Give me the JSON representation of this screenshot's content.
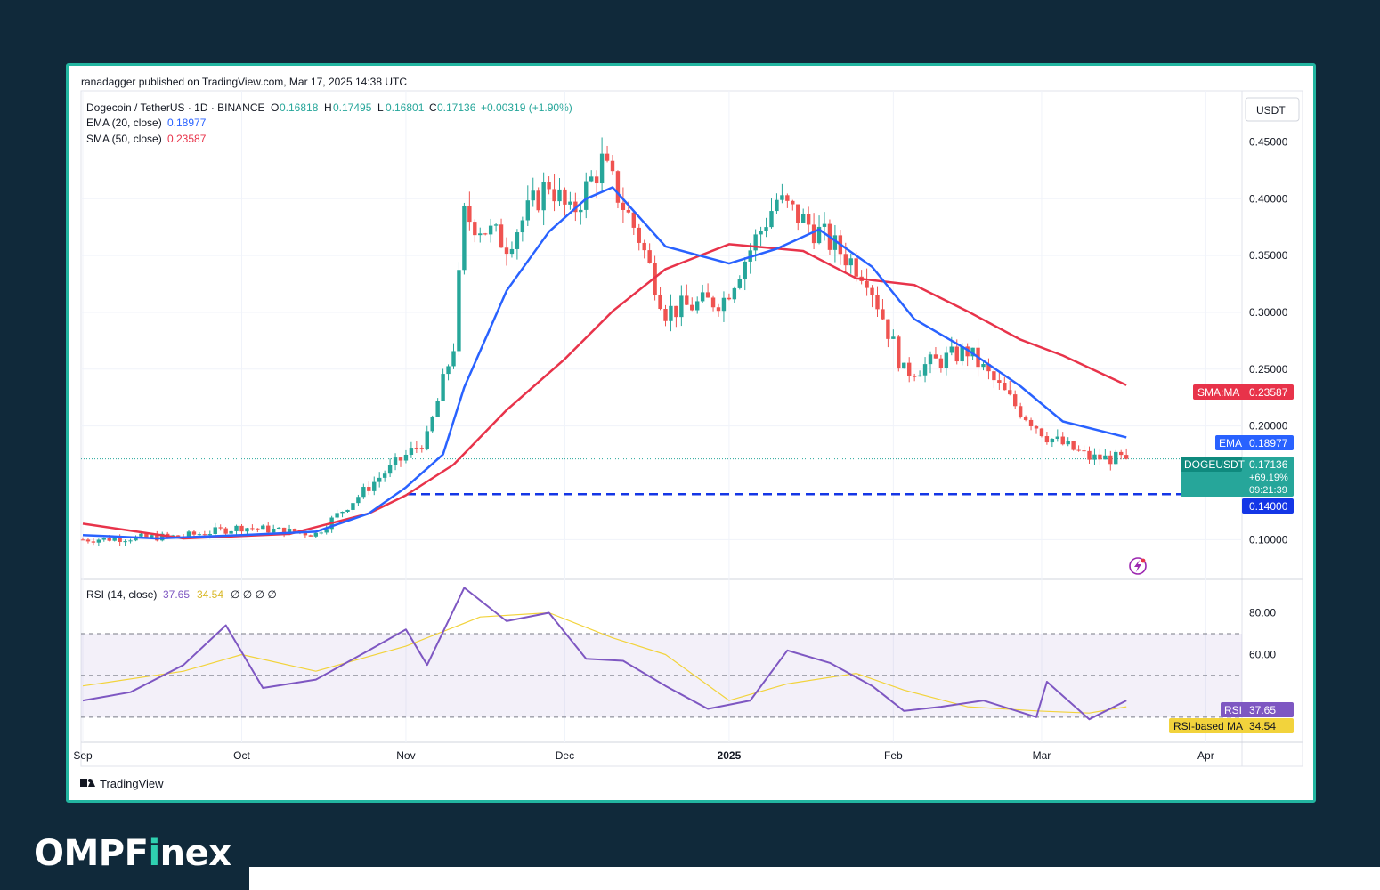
{
  "page": {
    "published": "ranadagger published on TradingView.com, Mar 17, 2025 14:38 UTC",
    "brand_pre": "OMPF",
    "brand_i": "i",
    "brand_post": "nex",
    "tradingview_label": "TradingView",
    "currency": "USDT"
  },
  "legend": {
    "symbol": "Dogecoin / TetherUS · 1D · BINANCE",
    "o_label": "O",
    "o": "0.16818",
    "h_label": "H",
    "h": "0.17495",
    "l_label": "L",
    "l": "0.16801",
    "c_label": "C",
    "c": "0.17136",
    "change": "+0.00319 (+1.90%)",
    "ema_label": "EMA (20, close)",
    "ema_value": "0.18977",
    "sma_label": "SMA (50, close)",
    "sma_value": "0.23587",
    "rsi_label": "RSI (14, close)",
    "rsi_value": "37.65",
    "rsi_ma_value": "34.54",
    "rsi_extra": "∅  ∅  ∅  ∅"
  },
  "tags": {
    "sma_name": "SMA:MA",
    "sma_value": "0.23587",
    "ema_name": "EMA",
    "ema_value": "0.18977",
    "price_name": "DOGEUSDT",
    "price_value": "0.17136",
    "price_change": "+69.19%",
    "countdown": "09:21:39",
    "hline_value": "0.14000",
    "rsi_name": "RSI",
    "rsi_value": "37.65",
    "rsima_name": "RSI-based MA",
    "rsima_value": "34.54"
  },
  "colors": {
    "up": "#26a69a",
    "down": "#ef5350",
    "ema": "#2962ff",
    "sma": "#e8334a",
    "rsi": "#7e57c2",
    "rsi_ma": "#f2d33c",
    "hline": "#1436e6",
    "frame": "#22b5a0",
    "background": "#10293a"
  },
  "chart_data": [
    {
      "type": "candlestick",
      "title": "Dogecoin / TetherUS · 1D · BINANCE",
      "y_axis_ticks": [
        "0.45000",
        "0.40000",
        "0.35000",
        "0.30000",
        "0.25000",
        "0.20000",
        "0.10000"
      ],
      "ylim": [
        0.065,
        0.495
      ],
      "x_axis_ticks": [
        "Sep",
        "Oct",
        "Nov",
        "Dec",
        "2025",
        "Feb",
        "Mar",
        "Apr"
      ],
      "horizontal_line": 0.14,
      "series": [
        {
          "name": "EMA (20, close)",
          "type": "line",
          "x": [
            "Sep 1",
            "Sep 15",
            "Oct 1",
            "Oct 15",
            "Oct 25",
            "Nov 1",
            "Nov 8",
            "Nov 12",
            "Nov 20",
            "Nov 28",
            "Dec 5",
            "Dec 10",
            "Dec 20",
            "Jan 1",
            "Jan 10",
            "Jan 18",
            "Jan 28",
            "Feb 5",
            "Feb 15",
            "Feb 25",
            "Mar 5",
            "Mar 17"
          ],
          "values": [
            0.104,
            0.101,
            0.104,
            0.107,
            0.123,
            0.146,
            0.175,
            0.234,
            0.319,
            0.371,
            0.4,
            0.41,
            0.358,
            0.343,
            0.356,
            0.373,
            0.34,
            0.294,
            0.267,
            0.235,
            0.204,
            0.19
          ]
        },
        {
          "name": "SMA (50, close)",
          "type": "line",
          "x": [
            "Sep 1",
            "Sep 20",
            "Oct 10",
            "Oct 25",
            "Nov 1",
            "Nov 10",
            "Nov 20",
            "Dec 1",
            "Dec 10",
            "Dec 20",
            "Jan 1",
            "Jan 15",
            "Jan 25",
            "Feb 5",
            "Feb 15",
            "Feb 25",
            "Mar 5",
            "Mar 17"
          ],
          "values": [
            0.114,
            0.101,
            0.105,
            0.123,
            0.139,
            0.166,
            0.214,
            0.259,
            0.301,
            0.338,
            0.36,
            0.354,
            0.33,
            0.324,
            0.301,
            0.276,
            0.262,
            0.236
          ]
        },
        {
          "name": "Price (close)",
          "type": "candles",
          "x": [
            "Sep 1",
            "Sep 20",
            "Oct 1",
            "Oct 15",
            "Oct 28",
            "Nov 5",
            "Nov 10",
            "Nov 12",
            "Nov 20",
            "Nov 28",
            "Dec 2",
            "Dec 8",
            "Dec 15",
            "Dec 20",
            "Dec 31",
            "Jan 10",
            "Jan 18",
            "Jan 27",
            "Feb 3",
            "Feb 15",
            "Feb 24",
            "Mar 2",
            "Mar 10",
            "Mar 17"
          ],
          "values": [
            0.1,
            0.103,
            0.111,
            0.105,
            0.159,
            0.189,
            0.271,
            0.385,
            0.361,
            0.415,
            0.385,
            0.432,
            0.366,
            0.301,
            0.312,
            0.399,
            0.37,
            0.333,
            0.247,
            0.266,
            0.218,
            0.191,
            0.172,
            0.171
          ]
        }
      ]
    },
    {
      "type": "line",
      "title": "RSI (14, close)",
      "y_axis_ticks": [
        "80.00",
        "60.00"
      ],
      "ylim": [
        18,
        96
      ],
      "bands": [
        30,
        50,
        70
      ],
      "series": [
        {
          "name": "RSI (14, close)",
          "x": [
            "Sep 1",
            "Sep 10",
            "Sep 20",
            "Sep 28",
            "Oct 5",
            "Oct 15",
            "Oct 25",
            "Nov 1",
            "Nov 5",
            "Nov 12",
            "Nov 20",
            "Nov 28",
            "Dec 5",
            "Dec 12",
            "Dec 20",
            "Dec 28",
            "Jan 5",
            "Jan 12",
            "Jan 20",
            "Jan 28",
            "Feb 3",
            "Feb 10",
            "Feb 18",
            "Feb 28",
            "Mar 2",
            "Mar 10",
            "Mar 17"
          ],
          "values": [
            38,
            42,
            55,
            74,
            44,
            48,
            62,
            72,
            55,
            92,
            76,
            80,
            58,
            57,
            45,
            34,
            38,
            62,
            56,
            45,
            33,
            35,
            38,
            30,
            47,
            29,
            38
          ]
        },
        {
          "name": "RSI-based MA",
          "x": [
            "Sep 1",
            "Sep 20",
            "Oct 1",
            "Oct 15",
            "Nov 1",
            "Nov 15",
            "Nov 28",
            "Dec 10",
            "Dec 20",
            "Jan 1",
            "Jan 12",
            "Jan 25",
            "Feb 3",
            "Feb 15",
            "Feb 28",
            "Mar 10",
            "Mar 17"
          ],
          "values": [
            45,
            52,
            60,
            52,
            64,
            78,
            80,
            68,
            60,
            38,
            46,
            51,
            43,
            35,
            33,
            32,
            35
          ]
        }
      ]
    }
  ]
}
